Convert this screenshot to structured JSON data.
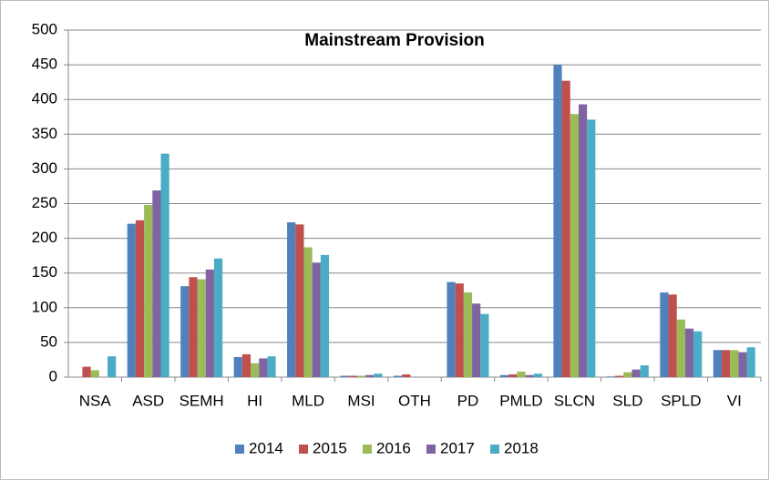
{
  "chart_data": {
    "type": "bar",
    "title": "Mainstream Provision",
    "categories": [
      "NSA",
      "ASD",
      "SEMH",
      "HI",
      "MLD",
      "MSI",
      "OTH",
      "PD",
      "PMLD",
      "SLCN",
      "SLD",
      "SPLD",
      "VI"
    ],
    "series": [
      {
        "name": "2014",
        "color": "#4f81bd",
        "values": [
          0,
          221,
          131,
          29,
          223,
          2,
          2,
          137,
          3,
          450,
          1,
          122,
          39
        ]
      },
      {
        "name": "2015",
        "color": "#c0504d",
        "values": [
          15,
          226,
          144,
          33,
          220,
          2,
          4,
          135,
          4,
          427,
          2,
          119,
          39
        ]
      },
      {
        "name": "2016",
        "color": "#9bbb59",
        "values": [
          10,
          248,
          141,
          20,
          187,
          2,
          0,
          122,
          8,
          379,
          7,
          83,
          39
        ]
      },
      {
        "name": "2017",
        "color": "#8064a2",
        "values": [
          0,
          269,
          155,
          27,
          165,
          3,
          0,
          106,
          3,
          393,
          11,
          70,
          36
        ]
      },
      {
        "name": "2018",
        "color": "#4bacc6",
        "values": [
          30,
          322,
          171,
          30,
          176,
          5,
          0,
          91,
          5,
          371,
          17,
          66,
          43
        ]
      }
    ],
    "ylim": [
      0,
      500
    ],
    "yticks": [
      0,
      50,
      100,
      150,
      200,
      250,
      300,
      350,
      400,
      450,
      500
    ],
    "grid": true,
    "legend": "bottom"
  }
}
